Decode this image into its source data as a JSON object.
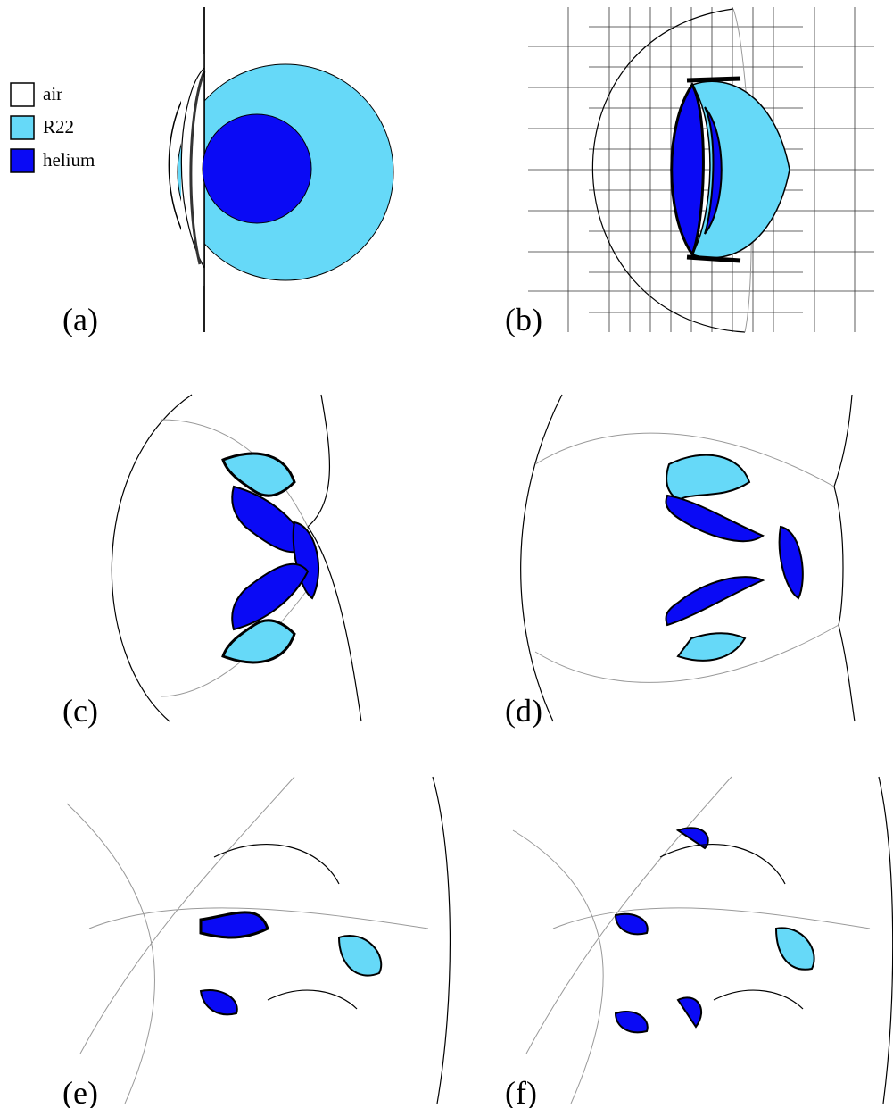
{
  "legend": [
    "air",
    "R22",
    "helium"
  ],
  "panels": [
    "(a)",
    "(b)",
    "(c)",
    "(d)",
    "(e)",
    "(f)"
  ]
}
